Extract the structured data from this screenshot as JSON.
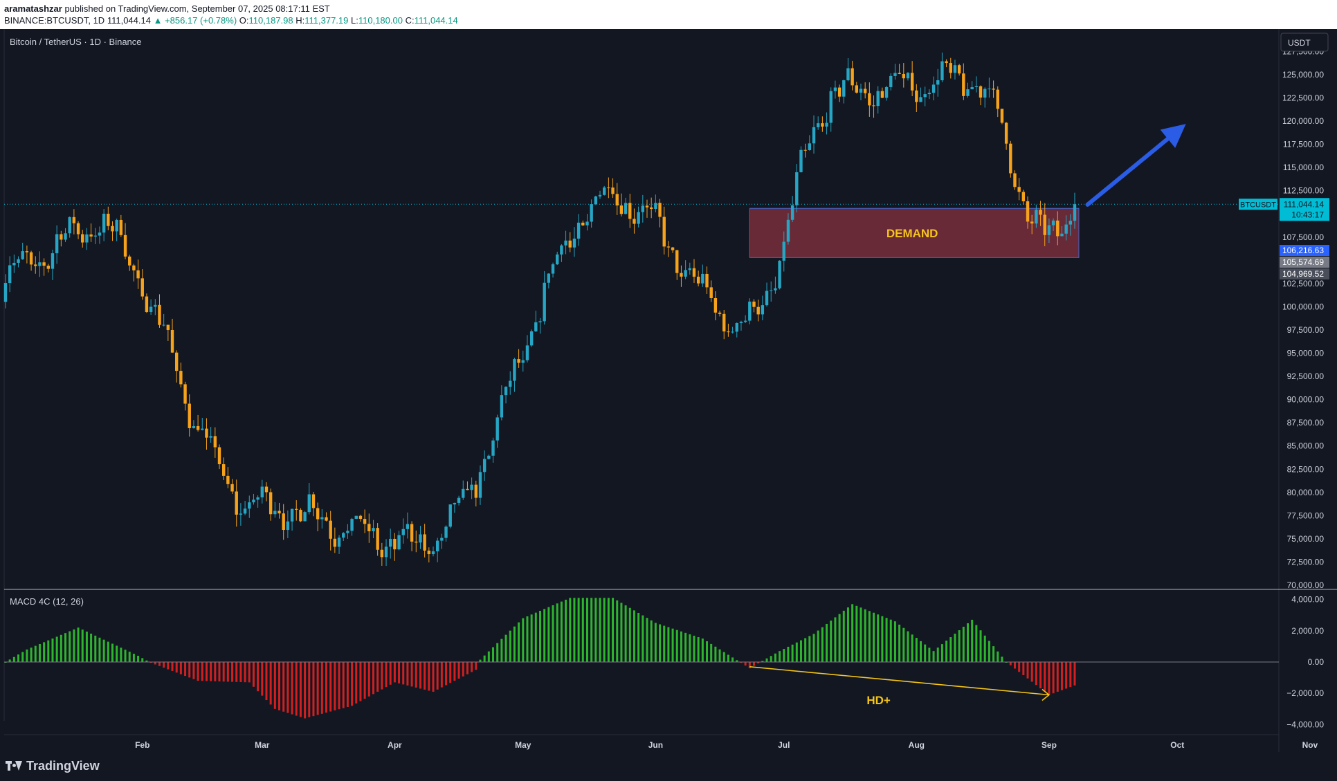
{
  "header": {
    "author": "aramatashzar",
    "published": "published on TradingView.com, September 07, 2025 08:17:11 EST",
    "symbol": "BINANCE:BTCUSDT, 1D",
    "last": "111,044.14",
    "change": "▲ +856.17 (+0.78%)",
    "o_label": "O:",
    "o": "110,187.98",
    "h_label": "H:",
    "h": "111,377.19",
    "l_label": "L:",
    "l": "110,180.00",
    "c_label": "C:",
    "c": "111,044.14"
  },
  "chart_title": "Bitcoin / TetherUS · 1D · Binance",
  "currency_button": "USDT",
  "footer": {
    "brand": "TradingView"
  },
  "colors": {
    "up": "#26a6c4",
    "down": "#f7a21b",
    "bg": "#131722",
    "zone": "#b03a48",
    "arrow": "#2b5ce6",
    "annotation": "#f5c518",
    "hist_pos": "#2db52d",
    "hist_neg": "#d21f1f"
  },
  "chart_data": [
    {
      "type": "candlestick",
      "title": "Bitcoin / TetherUS · 1D · Binance",
      "yaxis_ticks": [
        "127,500.00",
        "125,000.00",
        "122,500.00",
        "120,000.00",
        "117,500.00",
        "115,000.00",
        "112,500.00",
        "107,500.00",
        "102,500.00",
        "100,000.00",
        "97,500.00",
        "95,000.00",
        "92,500.00",
        "90,000.00",
        "87,500.00",
        "85,000.00",
        "82,500.00",
        "80,000.00",
        "77,500.00",
        "75,000.00",
        "72,500.00",
        "70,000.00"
      ],
      "ylim": [
        70000,
        128800
      ],
      "xaxis_ticks": [
        "Feb",
        "Mar",
        "Apr",
        "May",
        "Jun",
        "Jul",
        "Aug",
        "Sep",
        "Oct",
        "Nov"
      ],
      "price_labels": [
        {
          "text": "BTCUSDT",
          "value": 111044.14,
          "bg": "#00bcd4"
        },
        {
          "text": "111,044.14",
          "value": 111044.14,
          "bg": "#00bcd4"
        },
        {
          "text": "10:43:17",
          "value": 111044.14,
          "bg": "#00bcd4"
        },
        {
          "text": "106,216.63",
          "value": 106216.63,
          "bg": "#2962ff"
        },
        {
          "text": "105,574.69",
          "value": 105574.69,
          "bg": "#787b86"
        },
        {
          "text": "104,969.52",
          "value": 104969.52,
          "bg": "#4a4e5a"
        }
      ],
      "annotations": {
        "zone": {
          "label": "DEMAND",
          "y_top": 110600,
          "y_bottom": 105300,
          "x_start": "2025-06-23",
          "x_end": "2025-09-07"
        },
        "arrow": {
          "from": [
            "2025-09-10",
            111000
          ],
          "to": [
            "2025-10-03",
            119700
          ]
        }
      },
      "key_prices": [
        {
          "date": "2025-01-20",
          "price": 109000
        },
        {
          "date": "2025-02-28",
          "price": 78500
        },
        {
          "date": "2025-04-07",
          "price": 74500
        },
        {
          "date": "2025-05-22",
          "price": 111900
        },
        {
          "date": "2025-06-22",
          "price": 98200
        },
        {
          "date": "2025-07-14",
          "price": 123200
        },
        {
          "date": "2025-08-14",
          "price": 124500
        },
        {
          "date": "2025-09-01",
          "price": 107300
        },
        {
          "date": "2025-09-07",
          "price": 111044.14
        }
      ]
    },
    {
      "type": "bar",
      "title": "MACD 4C (12, 26)",
      "yaxis_ticks": [
        "4,000.00",
        "2,000.00",
        "0.00",
        "−2,000.00",
        "−4,000.00"
      ],
      "ylim": [
        -4200,
        4200
      ],
      "annotation": {
        "label": "HD+",
        "from": [
          "2025-06-23",
          -300
        ],
        "to": [
          "2025-09-01",
          -2100
        ]
      },
      "histogram_keypoints": [
        {
          "date": "2024-12-31",
          "value": 0
        },
        {
          "date": "2025-01-05",
          "value": 800
        },
        {
          "date": "2025-01-17",
          "value": 2200
        },
        {
          "date": "2025-01-31",
          "value": 400
        },
        {
          "date": "2025-02-03",
          "value": -50
        },
        {
          "date": "2025-02-14",
          "value": -1200
        },
        {
          "date": "2025-02-26",
          "value": -1300
        },
        {
          "date": "2025-03-04",
          "value": -3000
        },
        {
          "date": "2025-03-11",
          "value": -3600
        },
        {
          "date": "2025-03-22",
          "value": -2800
        },
        {
          "date": "2025-04-01",
          "value": -1300
        },
        {
          "date": "2025-04-10",
          "value": -1900
        },
        {
          "date": "2025-04-20",
          "value": -500
        },
        {
          "date": "2025-04-21",
          "value": 150
        },
        {
          "date": "2025-05-01",
          "value": 2800
        },
        {
          "date": "2025-05-12",
          "value": 4100
        },
        {
          "date": "2025-05-22",
          "value": 4100
        },
        {
          "date": "2025-06-01",
          "value": 2500
        },
        {
          "date": "2025-06-12",
          "value": 1500
        },
        {
          "date": "2025-06-23",
          "value": -400
        },
        {
          "date": "2025-06-30",
          "value": 700
        },
        {
          "date": "2025-07-08",
          "value": 1800
        },
        {
          "date": "2025-07-17",
          "value": 3700
        },
        {
          "date": "2025-07-27",
          "value": 2600
        },
        {
          "date": "2025-08-05",
          "value": 700
        },
        {
          "date": "2025-08-14",
          "value": 2700
        },
        {
          "date": "2025-08-22",
          "value": 0
        },
        {
          "date": "2025-09-01",
          "value": -2100
        },
        {
          "date": "2025-09-07",
          "value": -1500
        }
      ]
    }
  ]
}
